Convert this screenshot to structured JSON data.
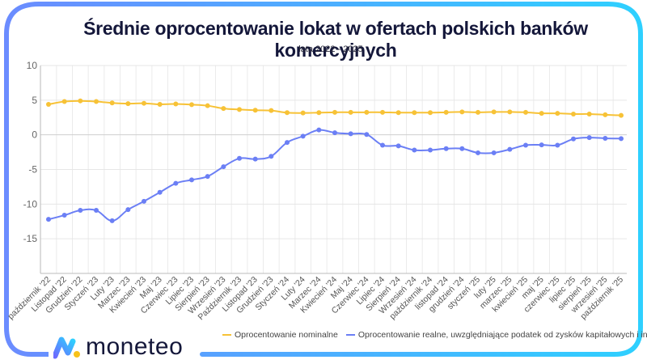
{
  "brand": {
    "name": "moneteo",
    "colors": {
      "frame_left": "#6b8cff",
      "frame_right": "#2ed0ff",
      "logo_dot": "#f7c21b",
      "title": "#14173a"
    }
  },
  "chart_data": {
    "type": "line",
    "title": "Średnie oprocentowanie lokat w ofertach polskich banków komercyjnych",
    "subtitle": "lata 2022 - 2025",
    "xlabel": "",
    "ylabel": "",
    "ylim": [
      -20,
      10
    ],
    "yticks": [
      10,
      5,
      0,
      -5,
      -10,
      -15
    ],
    "grid": true,
    "legend_position": "bottom",
    "categories": [
      "październik '22",
      "Listopad '22",
      "Grudzień '22",
      "Styczeń '23",
      "Luty '23",
      "Marzec '23",
      "Kwiecień '23",
      "Maj '23",
      "Czerwiec '23",
      "Lipiec '23",
      "Sierpień '23",
      "Wrzesień '23",
      "Październik '23",
      "Listopad '23",
      "Grudzień '23",
      "Styczeń '24",
      "Luty '24",
      "Marzec '24",
      "Kwiecień '24",
      "Maj '24",
      "Czerwiec '24",
      "Lipiec '24",
      "Sierpień '24",
      "Wrzesień '24",
      "październik '24",
      "listopad '24",
      "grudzień '24",
      "styczeń '25",
      "luty '25",
      "marzec '25",
      "kwiecień '25",
      "maj '25",
      "czerwiec '25",
      "lipiec '25",
      "sierpień '25",
      "wrzesień '25",
      "październik '25"
    ],
    "series": [
      {
        "name": "Oprocentowanie nominalne",
        "color": "#f7c236",
        "values": [
          4.4,
          4.8,
          4.9,
          4.8,
          4.6,
          4.5,
          4.55,
          4.4,
          4.45,
          4.35,
          4.2,
          3.8,
          3.65,
          3.55,
          3.5,
          3.2,
          3.15,
          3.2,
          3.25,
          3.25,
          3.25,
          3.25,
          3.2,
          3.2,
          3.2,
          3.25,
          3.3,
          3.25,
          3.3,
          3.3,
          3.25,
          3.1,
          3.1,
          3.0,
          3.0,
          2.9,
          2.8
        ]
      },
      {
        "name": "Oprocentowanie realne, uwzględniające podatek od zysków kapitałowych i inflację",
        "color": "#6b7ff5",
        "values": [
          -12.2,
          -11.6,
          -10.9,
          -10.9,
          -12.4,
          -10.8,
          -9.6,
          -8.3,
          -7.0,
          -6.5,
          -6.0,
          -4.6,
          -3.4,
          -3.5,
          -3.1,
          -1.1,
          -0.2,
          0.7,
          0.3,
          0.15,
          0.05,
          -1.5,
          -1.6,
          -2.2,
          -2.2,
          -2.0,
          -2.0,
          -2.6,
          -2.6,
          -2.1,
          -1.5,
          -1.45,
          -1.5,
          -0.6,
          -0.4,
          -0.5,
          -0.55
        ]
      }
    ]
  }
}
